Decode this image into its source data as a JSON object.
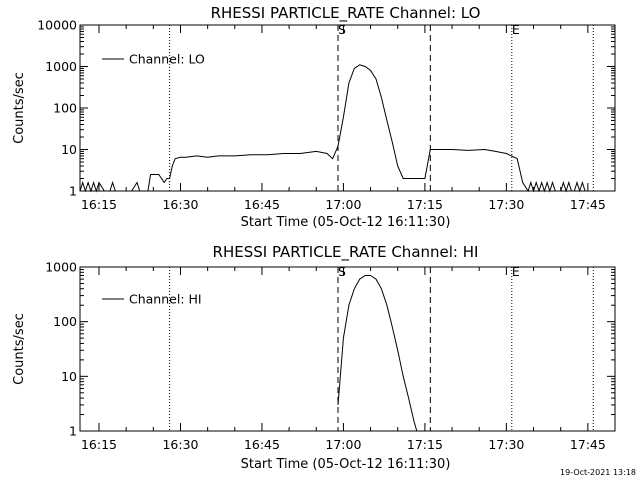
{
  "footer": {
    "date_stamp": "19-Oct-2021 13:18"
  },
  "colors": {
    "line": "#000000",
    "background": "#ffffff"
  },
  "chart_data": [
    {
      "type": "line",
      "title": "RHESSI PARTICLE_RATE Channel: LO",
      "xlabel": "Start Time (05-Oct-12 16:11:30)",
      "ylabel": "Counts/sec",
      "yscale": "log",
      "xlim": [
        "16:11:30",
        "17:50:00"
      ],
      "ylim": [
        1,
        10000
      ],
      "xticks": [
        "16:15",
        "16:30",
        "16:45",
        "17:00",
        "17:15",
        "17:30",
        "17:45"
      ],
      "yticks": [
        {
          "value": 1,
          "label": "1"
        },
        {
          "value": 10,
          "label": "10"
        },
        {
          "value": 100,
          "label": "100"
        },
        {
          "value": 1000,
          "label": "1000"
        },
        {
          "value": 10000,
          "label": "10000"
        }
      ],
      "legend": {
        "placement": "top-left",
        "entries": [
          "Channel: LO"
        ]
      },
      "markers": [
        {
          "label": "",
          "time": "16:28:00",
          "style": "dotted"
        },
        {
          "label": "S",
          "time": "16:59:00",
          "style": "dashed"
        },
        {
          "label": "",
          "time": "17:16:00",
          "style": "dashed"
        },
        {
          "label": "E",
          "time": "17:31:00",
          "style": "dotted"
        },
        {
          "label": "",
          "time": "17:46:00",
          "style": "dotted"
        }
      ],
      "series": [
        {
          "name": "Channel: LO",
          "x": [
            "16:11:30",
            "16:12:00",
            "16:12:30",
            "16:13:00",
            "16:13:30",
            "16:14:00",
            "16:14:30",
            "16:15:00",
            "16:16:00",
            "16:17:00",
            "16:17:30",
            "16:18:00",
            "16:19:00",
            "16:21:00",
            "16:22:00",
            "16:22:30",
            "16:24:00",
            "16:24:30",
            "16:25:00",
            "16:26:00",
            "16:27:00",
            "16:27:30",
            "16:28:00",
            "16:28:30",
            "16:29:00",
            "16:30:00",
            "16:31:00",
            "16:33:00",
            "16:35:00",
            "16:37:00",
            "16:40:00",
            "16:43:00",
            "16:46:00",
            "16:49:00",
            "16:52:00",
            "16:55:00",
            "16:57:00",
            "16:58:00",
            "16:59:00",
            "17:00:00",
            "17:01:00",
            "17:02:00",
            "17:03:00",
            "17:04:00",
            "17:05:00",
            "17:06:00",
            "17:07:00",
            "17:08:00",
            "17:09:00",
            "17:10:00",
            "17:11:00",
            "17:12:00",
            "17:13:00",
            "17:14:00",
            "17:15:00",
            "17:16:00",
            "17:16:30",
            "17:17:00",
            "17:20:00",
            "17:23:00",
            "17:26:00",
            "17:28:00",
            "17:30:00",
            "17:32:00",
            "17:33:00",
            "17:34:00",
            "17:34:30",
            "17:35:00",
            "17:35:30",
            "17:36:00",
            "17:36:30",
            "17:37:00",
            "17:37:30",
            "17:38:00",
            "17:38:30",
            "17:39:00",
            "17:39:30",
            "17:40:00",
            "17:40:30",
            "17:41:00",
            "17:41:30",
            "17:42:00",
            "17:42:30",
            "17:43:00",
            "17:43:30",
            "17:44:00",
            "17:44:30",
            "17:45:00",
            "17:46:00"
          ],
          "y": [
            1,
            1.6,
            1,
            1.6,
            1,
            1.6,
            1,
            1.6,
            1,
            1,
            1.6,
            1,
            1,
            1,
            1.6,
            1,
            1,
            2.5,
            2.5,
            2.5,
            1.6,
            2,
            2,
            4,
            6,
            6.5,
            6.5,
            7,
            6.5,
            7,
            7,
            7.5,
            7.5,
            8,
            8,
            9,
            8,
            6,
            12,
            60,
            400,
            900,
            1100,
            1000,
            800,
            500,
            180,
            50,
            15,
            4,
            2,
            2,
            2,
            2,
            2,
            10,
            10,
            10,
            10,
            9.5,
            10,
            9,
            8,
            6,
            1.6,
            1,
            1.6,
            1,
            1.6,
            1,
            1.6,
            1,
            1.6,
            1,
            1.6,
            1,
            1,
            1,
            1.6,
            1,
            1.6,
            1,
            1,
            1.6,
            1,
            1.6,
            1,
            1,
            1
          ]
        }
      ]
    },
    {
      "type": "line",
      "title": "RHESSI PARTICLE_RATE Channel: HI",
      "xlabel": "Start Time (05-Oct-12 16:11:30)",
      "ylabel": "Counts/sec",
      "yscale": "log",
      "xlim": [
        "16:11:30",
        "17:50:00"
      ],
      "ylim": [
        1,
        1000
      ],
      "xticks": [
        "16:15",
        "16:30",
        "16:45",
        "17:00",
        "17:15",
        "17:30",
        "17:45"
      ],
      "yticks": [
        {
          "value": 1,
          "label": "1"
        },
        {
          "value": 10,
          "label": "10"
        },
        {
          "value": 100,
          "label": "100"
        },
        {
          "value": 1000,
          "label": "1000"
        }
      ],
      "legend": {
        "placement": "top-left",
        "entries": [
          "Channel: HI"
        ]
      },
      "markers": [
        {
          "label": "",
          "time": "16:28:00",
          "style": "dotted"
        },
        {
          "label": "S",
          "time": "16:59:00",
          "style": "dashed"
        },
        {
          "label": "",
          "time": "17:16:00",
          "style": "dashed"
        },
        {
          "label": "E",
          "time": "17:31:00",
          "style": "dotted"
        },
        {
          "label": "",
          "time": "17:46:00",
          "style": "dotted"
        }
      ],
      "series": [
        {
          "name": "Channel: HI",
          "x": [
            "16:59:00",
            "16:59:30",
            "17:00:00",
            "17:01:00",
            "17:02:00",
            "17:03:00",
            "17:04:00",
            "17:05:00",
            "17:06:00",
            "17:07:00",
            "17:08:00",
            "17:09:00",
            "17:10:00",
            "17:11:00",
            "17:12:00",
            "17:13:00",
            "17:13:30"
          ],
          "y": [
            3,
            12,
            50,
            200,
            400,
            600,
            700,
            700,
            600,
            400,
            200,
            80,
            30,
            10,
            4,
            1.5,
            1
          ]
        }
      ]
    }
  ]
}
